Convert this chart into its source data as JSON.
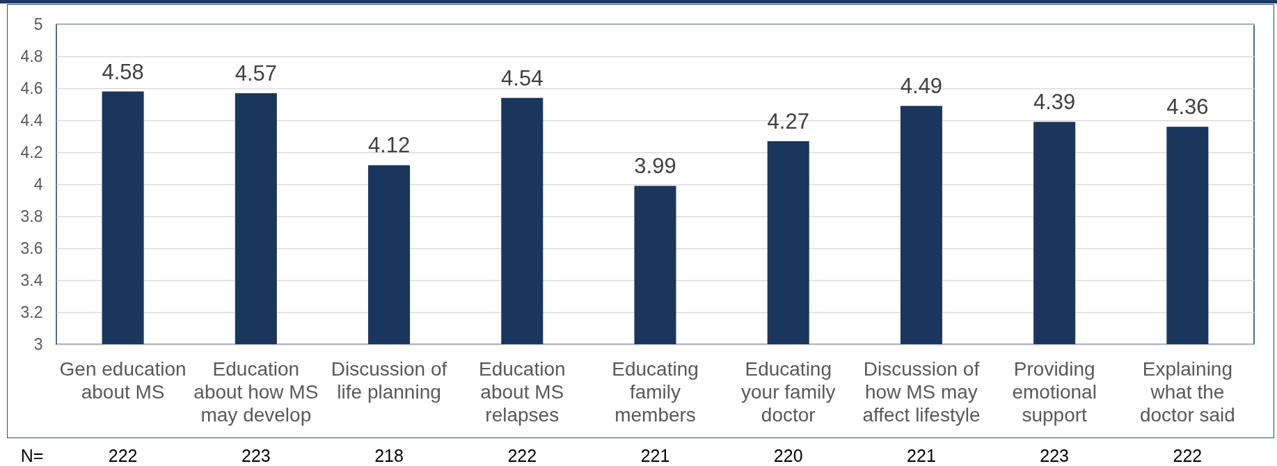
{
  "chart_data": {
    "type": "bar",
    "categories": [
      "Gen education about MS",
      "Education about how MS may develop",
      "Discussion of life planning",
      "Education about MS relapses",
      "Educating family members",
      "Educating your family doctor",
      "Discussion of how MS may affect lifestyle",
      "Providing emotional support",
      "Explaining what the doctor said"
    ],
    "values": [
      4.58,
      4.57,
      4.12,
      4.54,
      3.99,
      4.27,
      4.49,
      4.39,
      4.36
    ],
    "color": "#1a365d",
    "ylim": [
      3,
      5
    ],
    "yticks": [
      3,
      3.2,
      3.4,
      3.6,
      3.8,
      4,
      4.2,
      4.4,
      4.6,
      4.8,
      5
    ],
    "grid": "y",
    "data_labels": true,
    "annotations": [
      "N=",
      "222",
      "223",
      "218",
      "222",
      "221",
      "220",
      "221",
      "223",
      "222"
    ]
  }
}
